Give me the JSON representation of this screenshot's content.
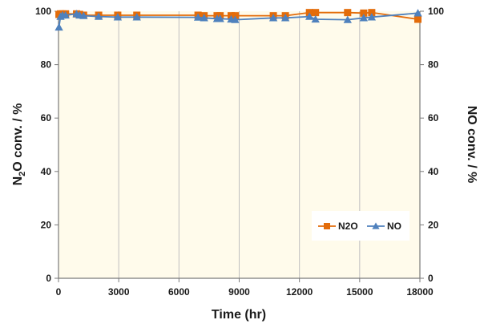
{
  "chart_data": {
    "type": "line",
    "xlabel": "Time (hr)",
    "ylabel_left": {
      "main": "N",
      "sub": "2",
      "rest": "O conv. / %"
    },
    "ylabel_right": "NO conv. / %",
    "xlim": [
      0,
      18000
    ],
    "ylim": [
      0,
      100
    ],
    "xticks": [
      0,
      3000,
      6000,
      9000,
      12000,
      15000,
      18000
    ],
    "yticks": [
      0,
      20,
      40,
      60,
      80,
      100
    ],
    "grid": "vertical",
    "legend_position": "bottom-right",
    "series": [
      {
        "name": "N2O",
        "color": "#e36c0a",
        "marker": "square",
        "x": [
          24,
          100,
          200,
          350,
          900,
          1050,
          1250,
          2000,
          2950,
          3900,
          6950,
          7250,
          7900,
          8050,
          8600,
          8800,
          10700,
          11300,
          12500,
          12800,
          14400,
          15200,
          15600,
          17900
        ],
        "y": [
          98.8,
          99.0,
          99.0,
          99.0,
          99.0,
          98.8,
          98.5,
          98.5,
          98.5,
          98.5,
          98.5,
          98.3,
          98.3,
          98.3,
          98.3,
          98.3,
          98.3,
          98.3,
          99.5,
          99.5,
          99.5,
          99.3,
          99.5,
          97.0
        ]
      },
      {
        "name": "NO",
        "color": "#4f81bd",
        "marker": "triangle",
        "x": [
          24,
          100,
          200,
          350,
          900,
          1050,
          1250,
          2000,
          2950,
          3900,
          6950,
          7250,
          7900,
          8050,
          8600,
          8800,
          10700,
          11300,
          12500,
          12800,
          14400,
          15200,
          15600,
          17900
        ],
        "y": [
          94.0,
          98.0,
          98.5,
          98.5,
          99.0,
          98.5,
          98.3,
          98.0,
          97.8,
          97.8,
          97.7,
          97.5,
          97.2,
          97.2,
          97.0,
          96.8,
          97.5,
          97.5,
          98.0,
          97.0,
          96.8,
          97.5,
          97.8,
          99.3
        ]
      }
    ]
  }
}
